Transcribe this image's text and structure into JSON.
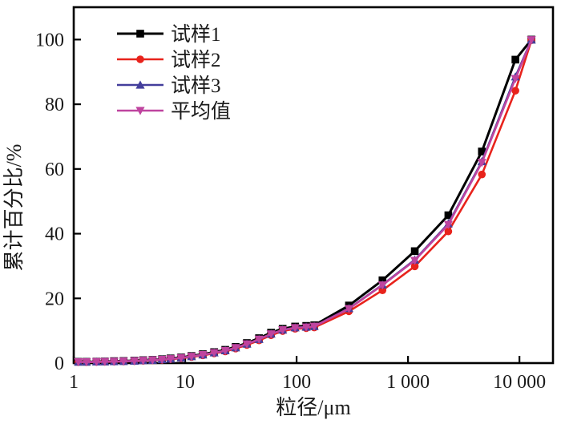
{
  "figure": {
    "background": "#ffffff",
    "text_color": "#1a1a1a"
  },
  "chart_data": {
    "type": "line",
    "title": "",
    "xlabel": "粒径/μm",
    "ylabel": "累计百分比/%",
    "x_scale": "log",
    "xlim": [
      1,
      20000
    ],
    "ylim": [
      0,
      110
    ],
    "grid": false,
    "legend_position": "top-left-inside",
    "x_ticks": [
      1,
      10,
      100,
      1000,
      10000
    ],
    "x_tick_labels": [
      "1",
      "10",
      "100",
      "1 000",
      "10 000"
    ],
    "y_ticks": [
      0,
      20,
      40,
      60,
      80,
      100
    ],
    "y_tick_labels": [
      "0",
      "20",
      "40",
      "60",
      "80",
      "100"
    ],
    "x": [
      1.1,
      1.3,
      1.6,
      1.9,
      2.3,
      2.8,
      3.5,
      4.2,
      5.1,
      6.2,
      7.4,
      9.2,
      11.4,
      14.4,
      18.2,
      22.9,
      28.4,
      35.8,
      46,
      59,
      75,
      97,
      122,
      144,
      295,
      590,
      1150,
      2300,
      4600,
      9200,
      12800
    ],
    "series": [
      {
        "name": "试样1",
        "color": "#000000",
        "marker": "square",
        "values": [
          0.4,
          0.4,
          0.45,
          0.5,
          0.6,
          0.65,
          0.75,
          0.9,
          1.0,
          1.2,
          1.45,
          1.75,
          2.2,
          2.75,
          3.4,
          4.1,
          5.0,
          6.2,
          7.7,
          9.4,
          10.6,
          11.3,
          11.5,
          11.7,
          17.8,
          25.6,
          34.6,
          45.7,
          65.4,
          93.8,
          100
        ]
      },
      {
        "name": "试样2",
        "color": "#e8231c",
        "marker": "circle",
        "values": [
          0.3,
          0.3,
          0.35,
          0.4,
          0.45,
          0.5,
          0.6,
          0.7,
          0.85,
          1.0,
          1.2,
          1.5,
          1.9,
          2.4,
          3.0,
          3.6,
          4.5,
          5.6,
          7.0,
          8.6,
          9.9,
          10.6,
          10.8,
          11.0,
          16.0,
          22.5,
          29.9,
          40.7,
          58.3,
          84.2,
          99.8
        ]
      },
      {
        "name": "试样3",
        "color": "#443f9c",
        "marker": "triangle-up",
        "values": [
          0.35,
          0.35,
          0.4,
          0.45,
          0.5,
          0.55,
          0.65,
          0.8,
          0.9,
          1.1,
          1.3,
          1.6,
          2.05,
          2.55,
          3.2,
          3.85,
          4.75,
          5.9,
          7.35,
          9.0,
          10.25,
          10.95,
          11.15,
          11.35,
          16.9,
          24.2,
          31.9,
          43.1,
          62.3,
          88.5,
          99.9
        ]
      },
      {
        "name": "平均值",
        "color": "#bf449f",
        "marker": "triangle-down",
        "values": [
          0.35,
          0.35,
          0.4,
          0.45,
          0.5,
          0.57,
          0.67,
          0.8,
          0.92,
          1.1,
          1.32,
          1.62,
          2.05,
          2.57,
          3.2,
          3.85,
          4.75,
          5.9,
          7.35,
          9.0,
          10.25,
          10.9,
          11.1,
          11.35,
          16.8,
          24.1,
          31.7,
          42.8,
          62.0,
          87.9,
          99.9
        ]
      }
    ]
  }
}
